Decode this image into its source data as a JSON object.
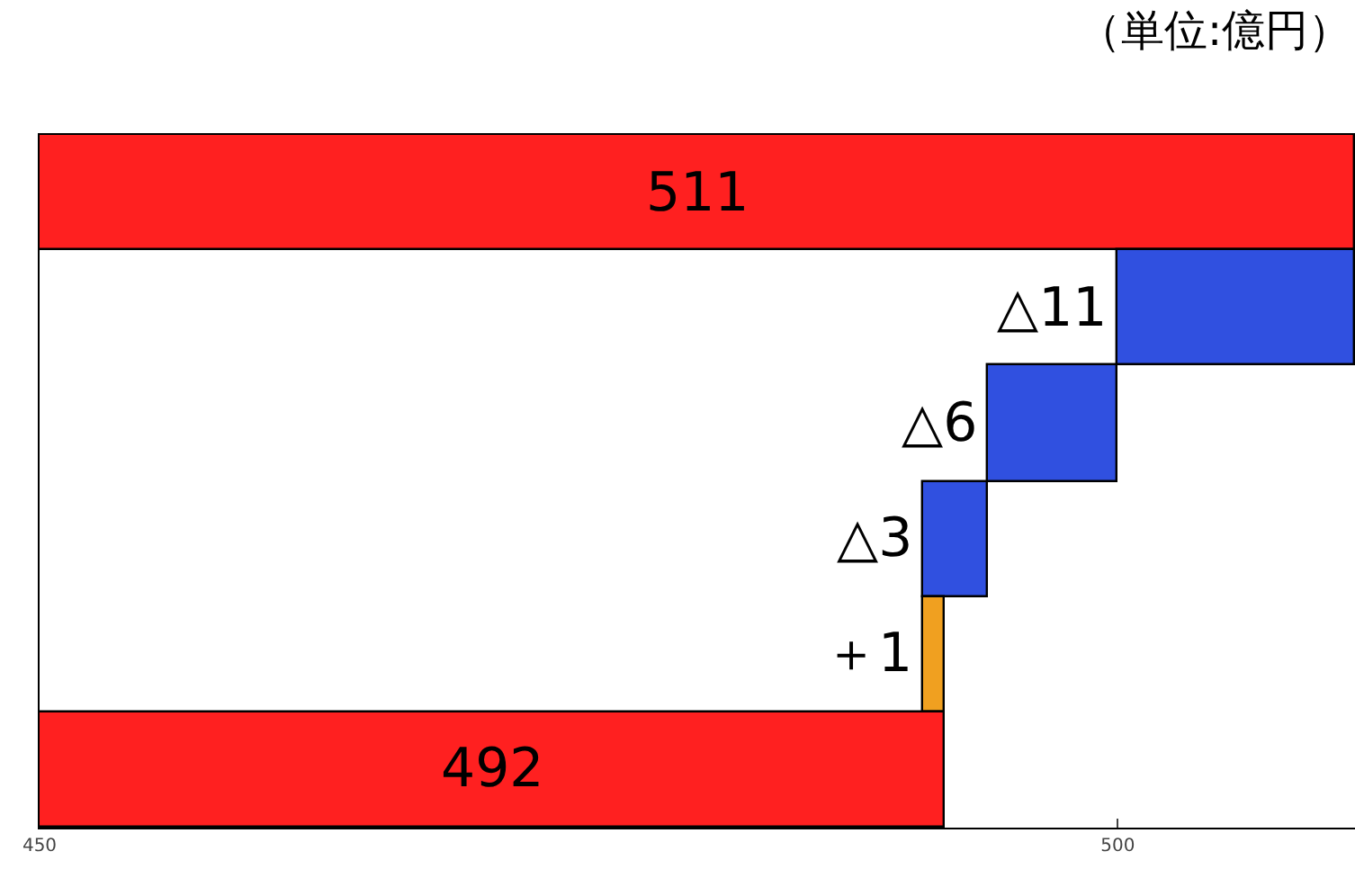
{
  "chart_data": {
    "type": "bar",
    "orientation": "horizontal",
    "annotations": [
      "（単位:億円）"
    ],
    "categories": [
      null,
      null,
      null,
      null,
      null,
      null
    ],
    "values": [
      511,
      -11,
      -6,
      -3,
      1,
      492
    ],
    "base": [
      null,
      511,
      500,
      494,
      491,
      null
    ],
    "colors": [
      "#ff2020",
      "#3050e0",
      "#3050e0",
      "#3050e0",
      "#f0a020",
      "#ff2020"
    ],
    "value_labels": [
      "511",
      "△11",
      "△6",
      "△3",
      "＋1",
      "492"
    ],
    "xlim": [
      450,
      511
    ],
    "xticks": [
      450,
      500
    ],
    "grid": false,
    "legend": false
  }
}
